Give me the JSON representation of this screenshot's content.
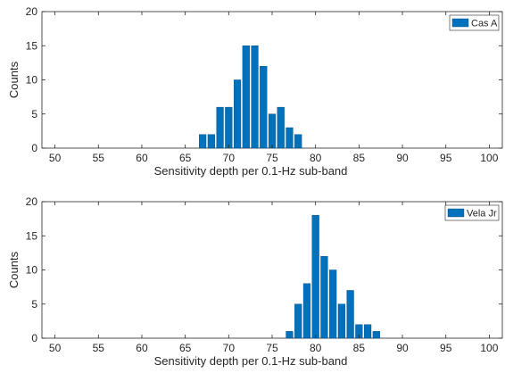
{
  "chart_data": [
    {
      "type": "bar",
      "ylabel": "Counts",
      "xlabel": "Sensitivity depth per 0.1-Hz sub-band",
      "xlim": [
        48.5,
        101.5
      ],
      "ylim": [
        0,
        20
      ],
      "xticks": [
        "50",
        "55",
        "60",
        "65",
        "70",
        "75",
        "80",
        "85",
        "90",
        "95",
        "100"
      ],
      "yticks": [
        "0",
        "5",
        "10",
        "15",
        "20"
      ],
      "legend_position": "top-right",
      "bar_color": "#0072BD",
      "series": [
        {
          "name": "Cas A",
          "x": [
            67,
            68,
            69,
            70,
            71,
            72,
            73,
            74,
            75,
            76,
            77,
            78
          ],
          "values": [
            2,
            2,
            6,
            6,
            10,
            15,
            15,
            12,
            5,
            6,
            3,
            2
          ]
        }
      ]
    },
    {
      "type": "bar",
      "ylabel": "Counts",
      "xlabel": "Sensitivity depth per 0.1-Hz sub-band",
      "xlim": [
        48.5,
        101.5
      ],
      "ylim": [
        0,
        20
      ],
      "xticks": [
        "50",
        "55",
        "60",
        "65",
        "70",
        "75",
        "80",
        "85",
        "90",
        "95",
        "100"
      ],
      "yticks": [
        "0",
        "5",
        "10",
        "15",
        "20"
      ],
      "legend_position": "top-right",
      "bar_color": "#0072BD",
      "series": [
        {
          "name": "Vela Jr",
          "x": [
            77,
            78,
            79,
            80,
            81,
            82,
            83,
            84,
            85,
            86,
            87
          ],
          "values": [
            1,
            5,
            8,
            18,
            12,
            10,
            5,
            7,
            2,
            2,
            1
          ]
        }
      ]
    }
  ]
}
